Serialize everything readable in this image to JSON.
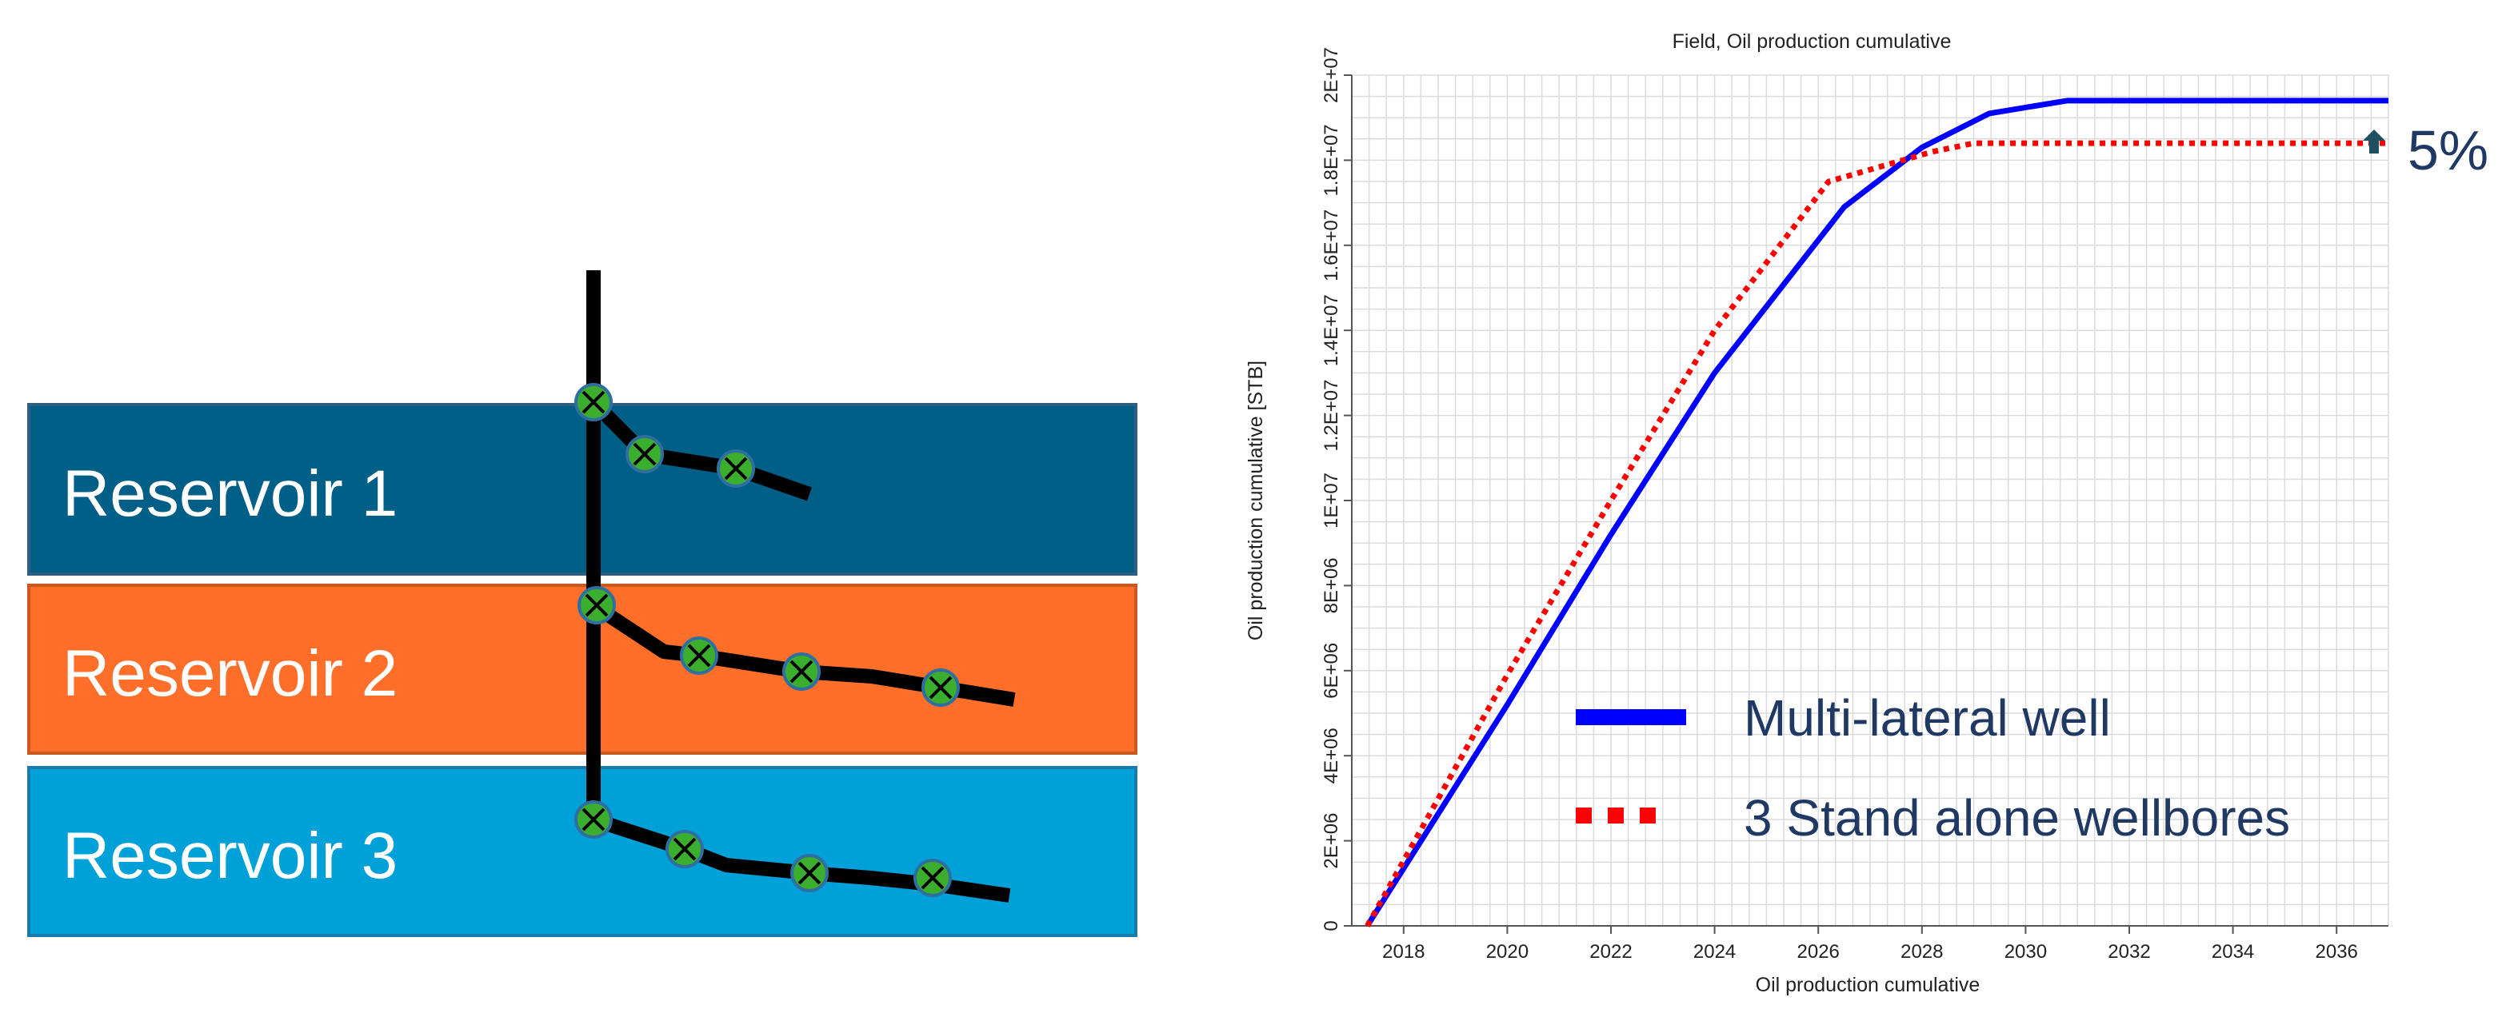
{
  "diagram": {
    "layers": [
      {
        "label": "Reservoir 1",
        "color": "#005f87"
      },
      {
        "label": "Reservoir 2",
        "color": "#ff6f2a"
      },
      {
        "label": "Reservoir 3",
        "color": "#00a0d8"
      }
    ],
    "well_color": "#000000",
    "node_color": "#3cae2e"
  },
  "chart_data": {
    "type": "line",
    "title": "Field, Oil production cumulative",
    "xlabel": "Oil production cumulative",
    "ylabel": "Oil production cumulative [STB]",
    "xlim": [
      2017,
      2037
    ],
    "ylim": [
      0,
      20000000
    ],
    "x_ticks": [
      "2018",
      "2020",
      "2022",
      "2024",
      "2026",
      "2028",
      "2030",
      "2032",
      "2034",
      "2036"
    ],
    "y_ticks": [
      "0",
      "2E+06",
      "4E+06",
      "6E+06",
      "8E+06",
      "1E+07",
      "1.2E+07",
      "1.4E+07",
      "1.6E+07",
      "1.8E+07",
      "2E+07"
    ],
    "grid": true,
    "series": [
      {
        "name": "Multi-lateral well",
        "color": "#0000ff",
        "style": "solid",
        "points": [
          [
            2017.3,
            0
          ],
          [
            2020,
            5200000
          ],
          [
            2022,
            9200000
          ],
          [
            2024,
            13000000
          ],
          [
            2026.5,
            16900000
          ],
          [
            2028,
            18300000
          ],
          [
            2029.3,
            19100000
          ],
          [
            2030.8,
            19400000
          ],
          [
            2037,
            19400000
          ]
        ]
      },
      {
        "name": "3 Stand alone wellbores",
        "color": "#ff0000",
        "style": "dotted",
        "points": [
          [
            2017.3,
            0
          ],
          [
            2020,
            5900000
          ],
          [
            2022,
            10000000
          ],
          [
            2024,
            14000000
          ],
          [
            2026.2,
            17500000
          ],
          [
            2028.2,
            18200000
          ],
          [
            2029,
            18400000
          ],
          [
            2037,
            18400000
          ]
        ]
      }
    ],
    "annotation": {
      "text": "5%",
      "marker": "up-arrow"
    }
  }
}
